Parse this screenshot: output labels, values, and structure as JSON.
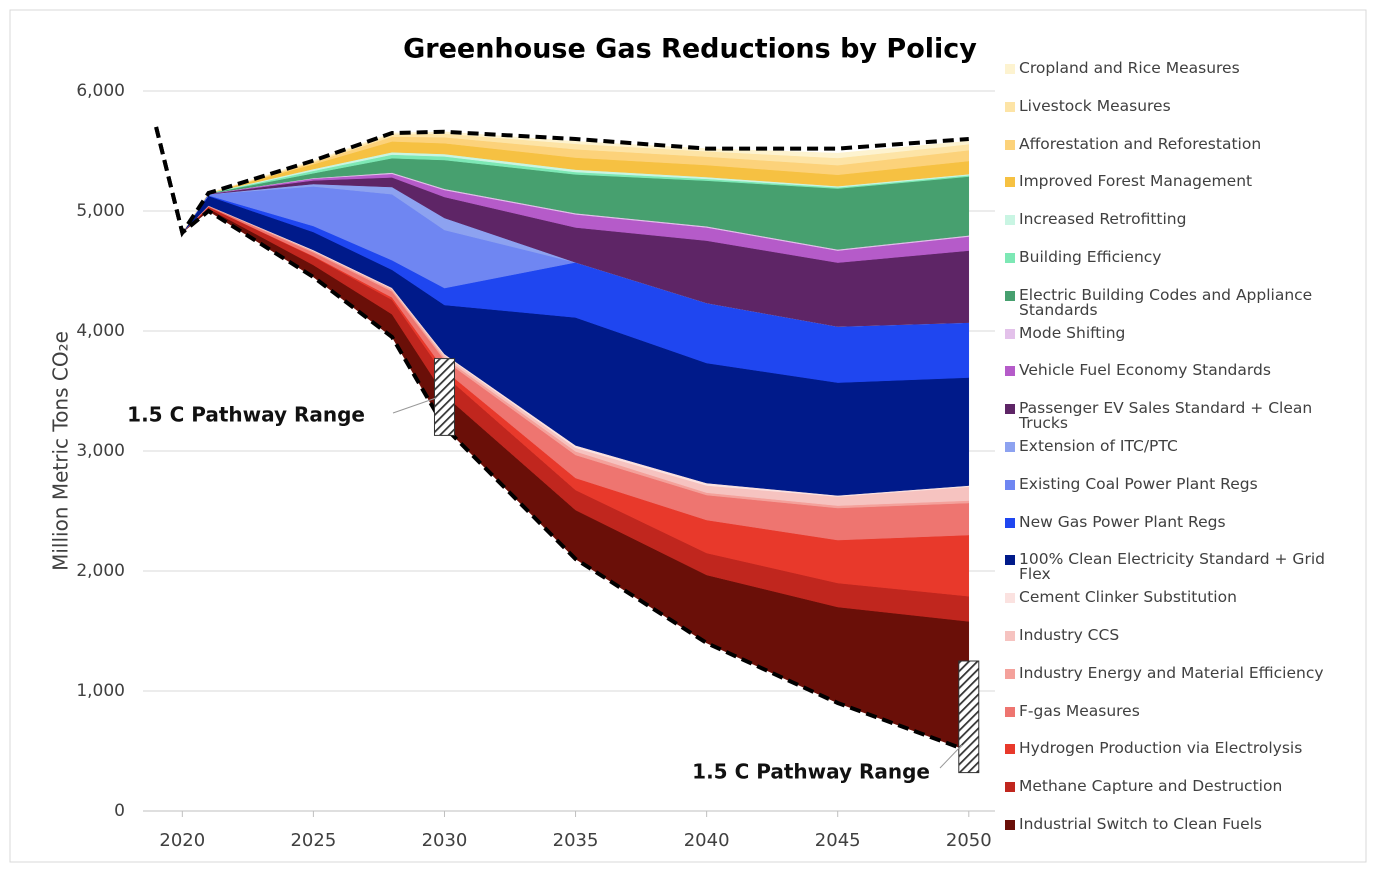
{
  "chart_data": {
    "type": "stacked_area",
    "title": "Greenhouse Gas Reductions by Policy",
    "y_label": "Million Metric Tons CO₂e",
    "xlim": [
      2018.5,
      2051
    ],
    "xticks": [
      2020,
      2025,
      2030,
      2035,
      2040,
      2045,
      2050
    ],
    "ylim": [
      0,
      6000
    ],
    "yticks": [
      0,
      {
        "value": 1000,
        "label": "1,000"
      },
      {
        "value": 2000,
        "label": "2,000"
      },
      {
        "value": 3000,
        "label": "3,000"
      },
      {
        "value": 4000,
        "label": "4,000"
      },
      {
        "value": 5000,
        "label": "5,000"
      },
      {
        "value": 6000,
        "label": "6,000"
      }
    ],
    "grid": true,
    "x": [
      2019,
      2020,
      2021,
      2025,
      2028,
      2030,
      2035,
      2040,
      2045,
      2050
    ],
    "lines": [
      {
        "color": "#000000",
        "values": [
          5700,
          4820,
          5150,
          5420,
          5650,
          5660,
          5600,
          5520,
          5520,
          5600
        ]
      },
      {
        "color": "#000000",
        "values": [
          5700,
          4820,
          5000,
          4450,
          3950,
          3200,
          2100,
          1400,
          900,
          500
        ]
      }
    ],
    "stack_base_line": 1,
    "series": [
      {
        "name": "Cropland and Rice Measures",
        "color": "#fdf3d0",
        "values": [
          null,
          0,
          0,
          5,
          10,
          15,
          20,
          22,
          40,
          25
        ]
      },
      {
        "name": "Livestock Measures",
        "color": "#fde4a6",
        "values": [
          null,
          0,
          0,
          10,
          20,
          30,
          45,
          45,
          60,
          50
        ]
      },
      {
        "name": "Afforestation and Reforestation",
        "color": "#fcd27a",
        "values": [
          null,
          0,
          0,
          15,
          40,
          50,
          70,
          70,
          80,
          90
        ]
      },
      {
        "name": "Improved Forest Management",
        "color": "#f6c142",
        "values": [
          null,
          0,
          1,
          40,
          90,
          90,
          100,
          100,
          95,
          110
        ]
      },
      {
        "name": "Increased Retrofitting",
        "color": "#c9f5e3",
        "values": [
          null,
          0,
          1,
          15,
          20,
          20,
          20,
          15,
          10,
          10
        ]
      },
      {
        "name": "Building Efficiency",
        "color": "#7de8b5",
        "values": [
          null,
          0,
          1,
          20,
          30,
          30,
          20,
          15,
          10,
          10
        ]
      },
      {
        "name": "Electric Building Codes and Appliance Standards",
        "color": "#47a06f",
        "values": [
          null,
          0,
          2,
          40,
          120,
          240,
          323,
          380,
          507,
          490
        ]
      },
      {
        "name": "Mode Shifting",
        "color": "#e3c1ea",
        "values": [
          null,
          0,
          0,
          5,
          10,
          10,
          10,
          10,
          10,
          10
        ]
      },
      {
        "name": "Vehicle Fuel Economy Standards",
        "color": "#b55bc9",
        "values": [
          null,
          0,
          2,
          15,
          30,
          58,
          109,
          110,
          100,
          117
        ]
      },
      {
        "name": "Passenger EV Sales Standard + Clean Trucks",
        "color": "#5e2566",
        "values": [
          null,
          0,
          3,
          30,
          80,
          175,
          291,
          520,
          533,
          600
        ]
      },
      {
        "name": "Extension of ITC/PTC",
        "color": "#8da2f0",
        "values": [
          null,
          0,
          0,
          20,
          60,
          100,
          0,
          0,
          0,
          0
        ]
      },
      {
        "name": "Existing Coal Power Plant Regs",
        "color": "#6f86f2",
        "values": [
          null,
          0,
          10,
          330,
          550,
          484,
          0,
          0,
          0,
          0
        ]
      },
      {
        "name": "New Gas Power Plant Regs",
        "color": "#1f46f0",
        "values": [
          null,
          0,
          5,
          50,
          80,
          141,
          459,
          500,
          467,
          458
        ]
      },
      {
        "name": "100% Clean Electricity Standard + Grid Flex",
        "color": "#001a8a",
        "values": [
          null,
          0,
          80,
          150,
          150,
          409,
          1066,
          1000,
          940,
          900
        ]
      },
      {
        "name": "Cement Clinker Substitution",
        "color": "#fbe2e0",
        "values": [
          null,
          0,
          0,
          5,
          5,
          10,
          20,
          20,
          10,
          10
        ]
      },
      {
        "name": "Industry CCS",
        "color": "#f6c3c0",
        "values": [
          null,
          0,
          0,
          5,
          10,
          20,
          30,
          60,
          75,
          115
        ]
      },
      {
        "name": "Industry Energy and Material Efficiency",
        "color": "#f4a19b",
        "values": [
          null,
          0,
          5,
          10,
          15,
          20,
          30,
          20,
          20,
          20
        ]
      },
      {
        "name": "F-gas Measures",
        "color": "#ee7570",
        "values": [
          null,
          0,
          5,
          30,
          50,
          83,
          192,
          208,
          267,
          267
        ]
      },
      {
        "name": "Hydrogen Production via Electrolysis",
        "color": "#e8392b",
        "values": [
          null,
          0,
          0,
          5,
          20,
          42,
          100,
          275,
          358,
          510
        ]
      },
      {
        "name": "Methane Capture and Destruction",
        "color": "#c0261e",
        "values": [
          null,
          0,
          15,
          70,
          120,
          166,
          167,
          183,
          200,
          210
        ]
      },
      {
        "name": "Industrial Switch to Clean Fuels",
        "color": "#6a0f08",
        "values": [
          null,
          0,
          20,
          100,
          190,
          267,
          408,
          567,
          800,
          1080
        ]
      }
    ],
    "pathway_ranges": [
      {
        "x": 2030,
        "low": 3130,
        "high": 3770,
        "label": "1.5 C Pathway Range"
      },
      {
        "x": 2050,
        "low": 320,
        "high": 1250,
        "label": "1.5 C Pathway Range"
      }
    ]
  }
}
